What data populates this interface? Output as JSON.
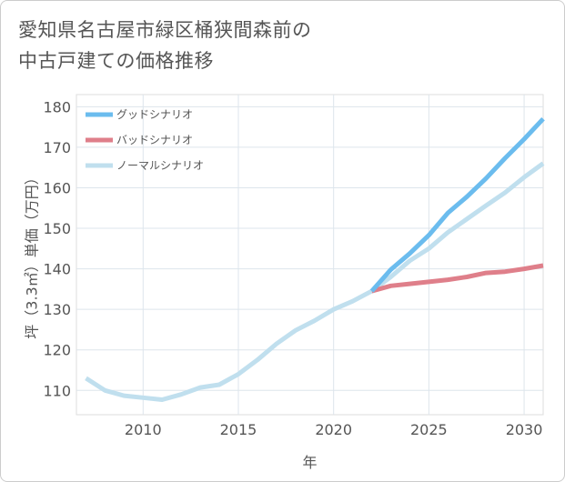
{
  "title": {
    "line1": "愛知県名古屋市緑区桶狭間森前の",
    "line2": "中古戸建ての価格推移"
  },
  "chart_data": {
    "type": "line",
    "title": "愛知県名古屋市緑区桶狭間森前の中古戸建ての価格推移",
    "xlabel": "年",
    "ylabel": "坪（3.3㎡）単価（万円）",
    "xlim": [
      2006.5,
      2031
    ],
    "ylim": [
      104,
      183
    ],
    "xticks": [
      2010,
      2015,
      2020,
      2025,
      2030
    ],
    "yticks": [
      110,
      120,
      130,
      140,
      150,
      160,
      170,
      180
    ],
    "grid": true,
    "legend_position": "top-left",
    "series": [
      {
        "name": "グッドシナリオ",
        "color": "#6bbcee",
        "x": [
          2022,
          2023,
          2024,
          2025,
          2026,
          2027,
          2028,
          2029,
          2030,
          2031
        ],
        "values": [
          134.5,
          139.8,
          143.8,
          148.3,
          153.8,
          157.8,
          162.3,
          167.3,
          172.0,
          177.0
        ]
      },
      {
        "name": "バッドシナリオ",
        "color": "#df7f8a",
        "x": [
          2022,
          2023,
          2024,
          2025,
          2026,
          2027,
          2028,
          2029,
          2030,
          2031
        ],
        "values": [
          134.5,
          135.8,
          136.3,
          136.8,
          137.3,
          138.0,
          139.0,
          139.3,
          140.0,
          140.8
        ]
      },
      {
        "name": "ノーマルシナリオ",
        "color": "#c0dfee",
        "x": [
          2007,
          2008,
          2009,
          2010,
          2011,
          2012,
          2013,
          2014,
          2015,
          2016,
          2017,
          2018,
          2019,
          2020,
          2021,
          2022,
          2023,
          2024,
          2025,
          2026,
          2027,
          2028,
          2029,
          2030,
          2031
        ],
        "values": [
          113.0,
          110.0,
          108.7,
          108.2,
          107.7,
          109.0,
          110.7,
          111.4,
          114.0,
          117.5,
          121.5,
          124.8,
          127.2,
          130.0,
          132.0,
          134.5,
          138.0,
          142.0,
          145.0,
          149.0,
          152.3,
          155.6,
          158.8,
          162.6,
          166.0
        ]
      }
    ]
  }
}
